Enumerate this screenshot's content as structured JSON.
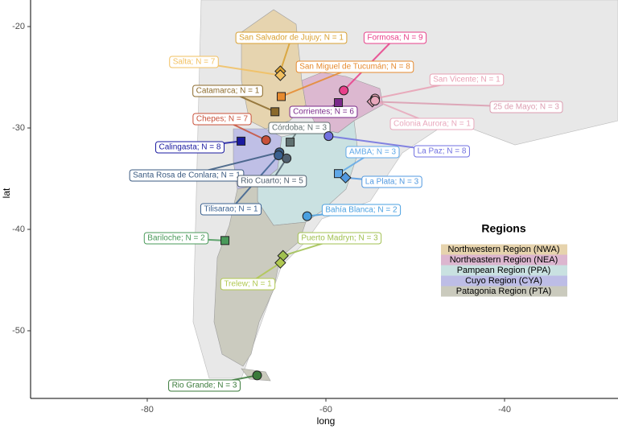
{
  "chart_data": {
    "type": "map",
    "x_label": "long",
    "y_label": "lat",
    "xlim": [
      -93.06,
      -27.3
    ],
    "ylim": [
      -56.67,
      -17.38
    ],
    "xticks": [
      -80,
      -60,
      -40
    ],
    "yticks": [
      -20,
      -30,
      -40,
      -50
    ],
    "grid": false,
    "legend": {
      "title": "Regions",
      "entries": [
        {
          "name": "Northwestern Region (NWA)",
          "color": "#e6d3ad"
        },
        {
          "name": "Northeastern Region (NEA)",
          "color": "#dcb6cf"
        },
        {
          "name": "Pampean Region (PPA)",
          "color": "#c9e1e1"
        },
        {
          "name": "Cuyo Region (CYA)",
          "color": "#bdbde6"
        },
        {
          "name": "Patagonia Region (PTA)",
          "color": "#cacabd"
        }
      ]
    },
    "points": [
      {
        "label": "San Salvador de Jujuy; N = 1",
        "lon": -65.1,
        "lat": -24.4,
        "color": "#d9a030",
        "shape": "diamond"
      },
      {
        "label": "Salta; N = 7",
        "lon": -65.1,
        "lat": -24.8,
        "color": "#f2c060",
        "shape": "diamond"
      },
      {
        "label": "Formosa; N = 9",
        "lon": -58.0,
        "lat": -26.3,
        "color": "#e8408a",
        "shape": "circle"
      },
      {
        "label": "San Miguel de Tucumán; N = 8",
        "lon": -65.0,
        "lat": -26.9,
        "color": "#e68a2e",
        "shape": "square"
      },
      {
        "label": "San Vicente; N = 1",
        "lon": -54.5,
        "lat": -27.1,
        "color": "#e8a0b4",
        "shape": "circle"
      },
      {
        "label": "Catamarca; N = 1",
        "lon": -65.7,
        "lat": -28.4,
        "color": "#8b6a2b",
        "shape": "square"
      },
      {
        "label": "Corrientes; N = 6",
        "lon": -58.6,
        "lat": -27.5,
        "color": "#7a2a8a",
        "shape": "square"
      },
      {
        "label": "25 de Mayo; N = 3",
        "lon": -54.8,
        "lat": -27.4,
        "color": "#dc9cb0",
        "shape": "diamond"
      },
      {
        "label": "Colonia Aurora; N = 1",
        "lon": -54.5,
        "lat": -27.3,
        "color": "#e8a8bc",
        "shape": "circle"
      },
      {
        "label": "Chepes; N = 7",
        "lon": -66.7,
        "lat": -31.2,
        "color": "#c8503a",
        "shape": "circle"
      },
      {
        "label": "Córdoba; N = 3",
        "lon": -64.0,
        "lat": -31.4,
        "color": "#607070",
        "shape": "square"
      },
      {
        "label": "Calingasta; N = 8",
        "lon": -69.5,
        "lat": -31.3,
        "color": "#1a1aa0",
        "shape": "square"
      },
      {
        "label": "La Paz; N = 8",
        "lon": -59.7,
        "lat": -30.8,
        "color": "#7070e0",
        "shape": "circle"
      },
      {
        "label": "AMBA; N = 3",
        "lon": -58.6,
        "lat": -34.5,
        "color": "#60a8e8",
        "shape": "square"
      },
      {
        "label": "Santa Rosa de Conlara; N = 1",
        "lon": -65.2,
        "lat": -32.4,
        "color": "#3a5a80",
        "shape": "circle"
      },
      {
        "label": "La Plata; N = 3",
        "lon": -57.8,
        "lat": -34.9,
        "color": "#5098e0",
        "shape": "diamond"
      },
      {
        "label": "Rio Cuarto; N = 5",
        "lon": -64.4,
        "lat": -33.0,
        "color": "#506070",
        "shape": "circle"
      },
      {
        "label": "Tilisarao; N = 1",
        "lon": -65.3,
        "lat": -32.7,
        "color": "#3a6090",
        "shape": "circle"
      },
      {
        "label": "Bahía Blanca; N = 2",
        "lon": -62.1,
        "lat": -38.7,
        "color": "#4aa0e0",
        "shape": "circle"
      },
      {
        "label": "Bariloche; N = 2",
        "lon": -71.3,
        "lat": -41.1,
        "color": "#4a9a5a",
        "shape": "square"
      },
      {
        "label": "Puerto Madryn; N = 3",
        "lon": -64.8,
        "lat": -42.6,
        "color": "#a0c050",
        "shape": "diamond"
      },
      {
        "label": "Trelew; N = 1",
        "lon": -65.1,
        "lat": -43.3,
        "color": "#b0c850",
        "shape": "diamond"
      },
      {
        "label": "Rio Grande; N = 3",
        "lon": -67.7,
        "lat": -54.4,
        "color": "#3a7a3a",
        "shape": "circle"
      }
    ]
  }
}
